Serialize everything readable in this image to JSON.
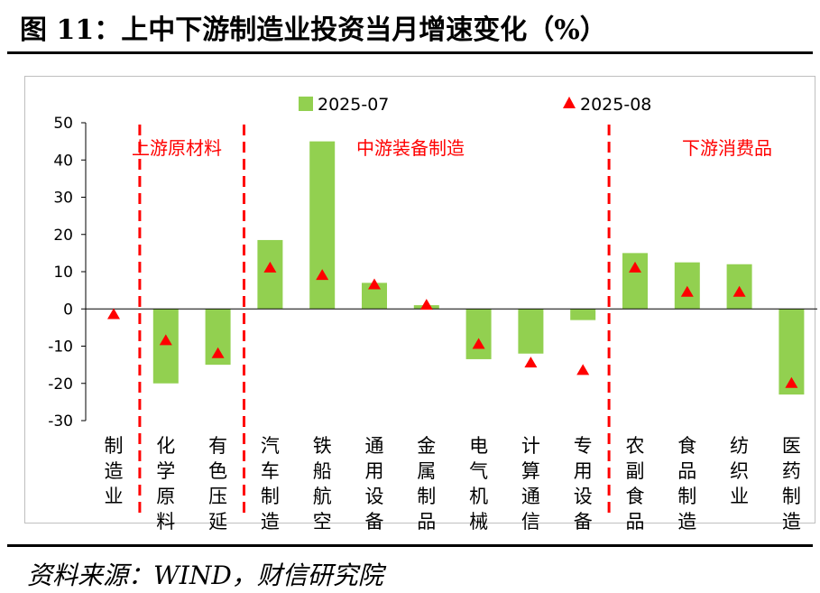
{
  "title": "图 11：上中下游制造业投资当月增速变化（%）",
  "source": "资料来源：WIND，财信研究院",
  "chart_data": {
    "type": "bar",
    "ylim": [
      -30,
      50
    ],
    "yticks": [
      "50",
      "40",
      "30",
      "20",
      "10",
      "0",
      "-10",
      "-20",
      "-30"
    ],
    "categories": [
      "制造业",
      "化学原料",
      "有色压延",
      "汽车制造",
      "铁船航空",
      "通用设备",
      "金属制品",
      "电气机械",
      "计算通信",
      "专用设备",
      "农副食品",
      "食品制造",
      "纺织业",
      "医药制造"
    ],
    "series": [
      {
        "name": "2025-07",
        "kind": "bar",
        "color": "#92d050",
        "values": [
          null,
          -20,
          -15,
          18.5,
          45,
          7,
          1,
          -13.5,
          -12,
          -3,
          15,
          12.5,
          12,
          -23
        ]
      },
      {
        "name": "2025-08",
        "kind": "marker",
        "color": "#ff0000",
        "values": [
          -1.5,
          -8.5,
          -12,
          11,
          9,
          6.5,
          1,
          -9.5,
          -14.5,
          -16.5,
          11,
          4.5,
          4.5,
          -20
        ]
      }
    ],
    "groups": [
      {
        "label": "上游原材料",
        "start": 1,
        "end": 2
      },
      {
        "label": "中游装备制造",
        "start": 3,
        "end": 9
      },
      {
        "label": "下游消费品",
        "start": 10,
        "end": 13
      }
    ],
    "group_color": "#ff0000",
    "legend_placement": "top"
  }
}
